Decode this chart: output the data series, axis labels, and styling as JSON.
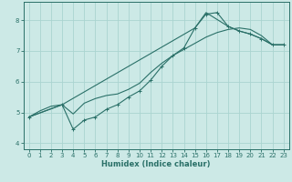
{
  "xlabel": "Humidex (Indice chaleur)",
  "bg_color": "#cce9e6",
  "grid_color": "#aad4d0",
  "line_color": "#2a7068",
  "xlim": [
    -0.5,
    23.5
  ],
  "ylim": [
    3.8,
    8.6
  ],
  "xticks": [
    0,
    1,
    2,
    3,
    4,
    5,
    6,
    7,
    8,
    9,
    10,
    11,
    12,
    13,
    14,
    15,
    16,
    17,
    18,
    19,
    20,
    21,
    22,
    23
  ],
  "yticks": [
    4,
    5,
    6,
    7,
    8
  ],
  "line1_x": [
    0,
    1,
    2,
    3,
    4,
    5,
    6,
    7,
    8,
    9,
    10,
    11,
    12,
    13,
    14,
    15,
    16,
    17,
    18,
    19,
    20,
    21,
    22,
    23
  ],
  "line1_y": [
    4.85,
    5.05,
    5.2,
    5.25,
    4.95,
    5.3,
    5.45,
    5.55,
    5.6,
    5.75,
    5.95,
    6.3,
    6.6,
    6.85,
    7.05,
    7.25,
    7.45,
    7.6,
    7.7,
    7.75,
    7.7,
    7.5,
    7.2,
    7.2
  ],
  "line2_x": [
    0,
    3,
    4,
    5,
    6,
    7,
    8,
    9,
    10,
    11,
    12,
    13,
    14,
    15,
    16,
    17,
    18,
    19,
    20,
    21,
    22,
    23
  ],
  "line2_y": [
    4.85,
    5.25,
    4.45,
    4.75,
    4.85,
    5.1,
    5.25,
    5.5,
    5.7,
    6.05,
    6.5,
    6.85,
    7.1,
    7.75,
    8.2,
    8.25,
    7.8,
    7.65,
    7.55,
    7.4,
    7.2,
    7.2
  ],
  "line3_x": [
    0,
    3,
    15,
    16,
    18,
    19,
    20,
    21,
    22,
    23
  ],
  "line3_y": [
    4.85,
    5.25,
    7.75,
    8.25,
    7.8,
    7.65,
    7.55,
    7.4,
    7.2,
    7.2
  ]
}
